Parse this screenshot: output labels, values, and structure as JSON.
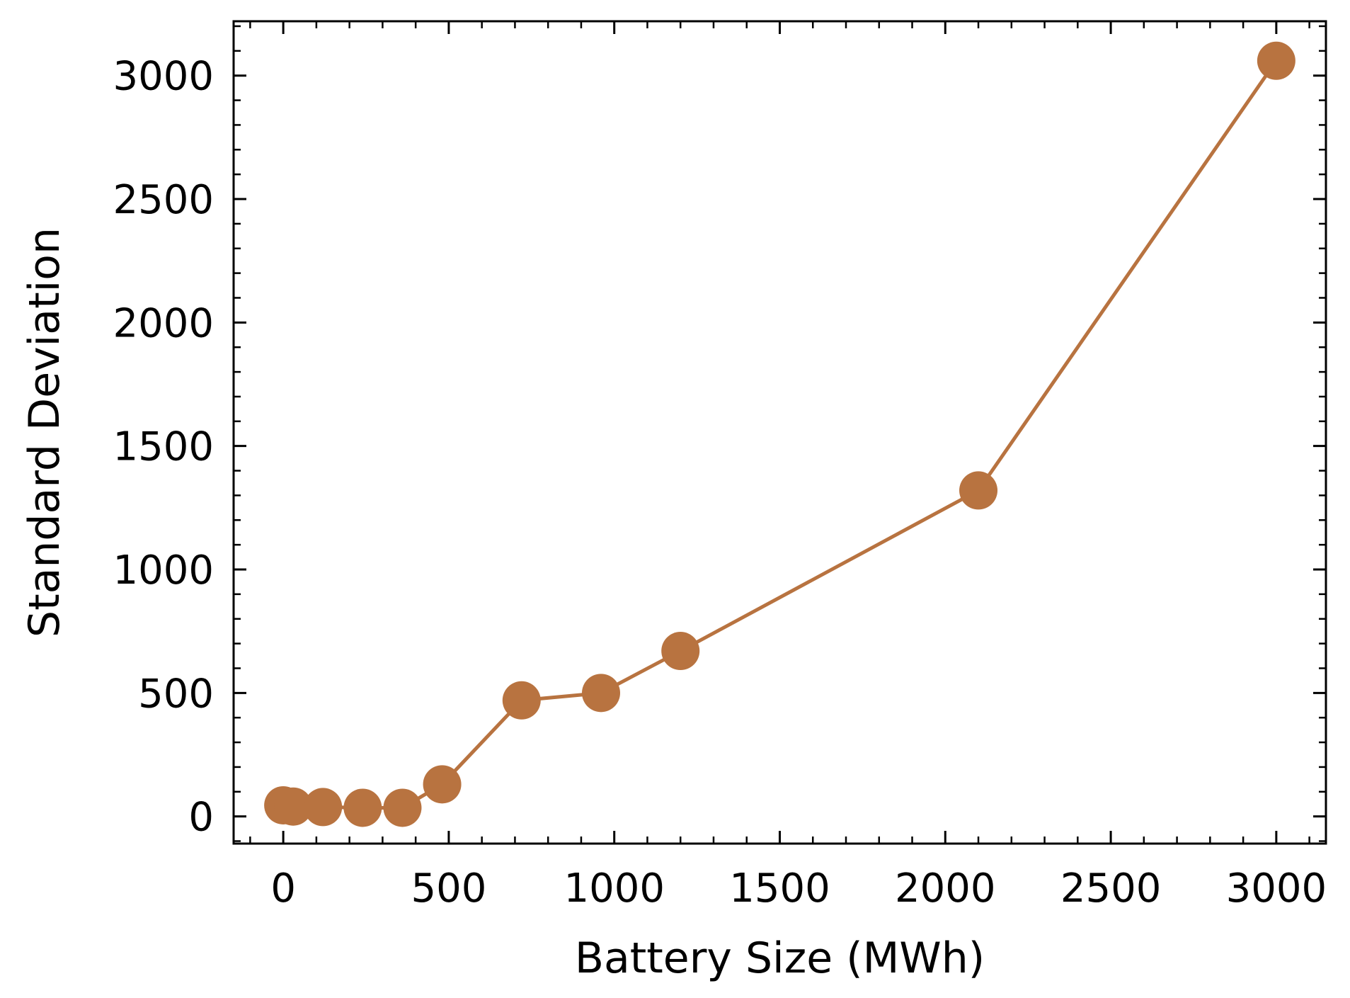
{
  "chart_data": {
    "type": "line",
    "title": "",
    "xlabel": "Battery Size (MWh)",
    "ylabel": "Standard Deviation",
    "xlim": [
      -150,
      3150
    ],
    "ylim": [
      -110,
      3220
    ],
    "xticks": [
      0,
      500,
      1000,
      1500,
      2000,
      2500,
      3000
    ],
    "yticks": [
      0,
      500,
      1000,
      1500,
      2000,
      2500,
      3000
    ],
    "grid": false,
    "legend": "none",
    "series": [
      {
        "color": "#b87340",
        "marker": "circle",
        "x": [
          0,
          30,
          120,
          240,
          360,
          480,
          720,
          960,
          1200,
          2100,
          3000
        ],
        "y": [
          45,
          40,
          38,
          35,
          35,
          130,
          470,
          500,
          670,
          1320,
          3060
        ]
      }
    ]
  }
}
